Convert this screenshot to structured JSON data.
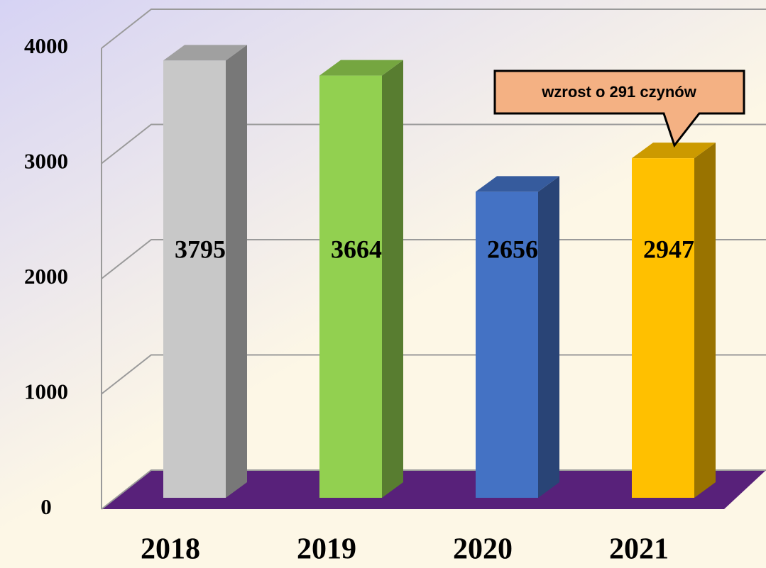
{
  "chart_data": {
    "type": "bar3d",
    "categories": [
      "2018",
      "2019",
      "2020",
      "2021"
    ],
    "values": [
      3795,
      3664,
      2656,
      2947
    ],
    "colors": [
      "#c8c8c8",
      "#92d050",
      "#4472c4",
      "#ffc000"
    ],
    "floor_color": "#58217a",
    "ylim": [
      0,
      4000
    ],
    "yticks": [
      0,
      1000,
      2000,
      3000,
      4000
    ],
    "grid": true,
    "annotation": "wzrost o 291 czynów"
  }
}
